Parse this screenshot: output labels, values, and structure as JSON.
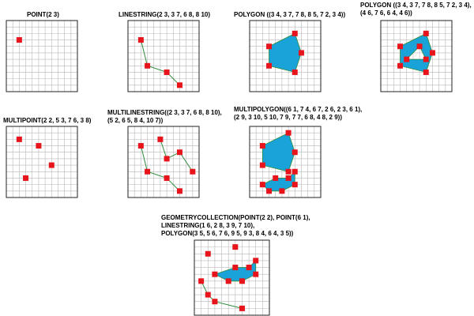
{
  "colors": {
    "point": "#e8141c",
    "fill": "#1aa3d9",
    "line": "#2e8b3a",
    "grid": "#b8b8b8",
    "frame": "#222222"
  },
  "panels": [
    {
      "id": "point",
      "caption": [
        "POINT(2 3)"
      ],
      "points": [
        [
          2,
          3
        ]
      ],
      "lines": [],
      "polygons": []
    },
    {
      "id": "linestring",
      "caption": [
        "LINESTRING(2 3, 3 7, 6 8, 8 10)"
      ],
      "points": [
        [
          2,
          3
        ],
        [
          3,
          7
        ],
        [
          6,
          8
        ],
        [
          8,
          10
        ]
      ],
      "lines": [
        [
          [
            2,
            3
          ],
          [
            3,
            7
          ],
          [
            6,
            8
          ],
          [
            8,
            10
          ]
        ]
      ],
      "polygons": []
    },
    {
      "id": "polygon",
      "caption": [
        "POLYGON ((3 4, 3 7, 7 8, 8 5, 7 2, 3 4))"
      ],
      "points": [
        [
          3,
          4
        ],
        [
          3,
          7
        ],
        [
          7,
          8
        ],
        [
          8,
          5
        ],
        [
          7,
          2
        ]
      ],
      "lines": [],
      "polygons": [
        [
          [
            [
              3,
              4
            ],
            [
              3,
              7
            ],
            [
              7,
              8
            ],
            [
              8,
              5
            ],
            [
              7,
              2
            ]
          ]
        ]
      ]
    },
    {
      "id": "polygon-hole",
      "caption": [
        "POLYGON ((3 4, 3 7, 7 8, 8 5, 7 2, 3 4),",
        "(4 6, 7 6, 6 4, 4 6))"
      ],
      "points": [
        [
          3,
          4
        ],
        [
          3,
          7
        ],
        [
          7,
          8
        ],
        [
          8,
          5
        ],
        [
          7,
          2
        ],
        [
          4,
          6
        ],
        [
          7,
          6
        ],
        [
          6,
          4
        ]
      ],
      "lines": [],
      "polygons": [
        [
          [
            [
              3,
              4
            ],
            [
              3,
              7
            ],
            [
              7,
              8
            ],
            [
              8,
              5
            ],
            [
              7,
              2
            ]
          ],
          [
            [
              4,
              6
            ],
            [
              7,
              6
            ],
            [
              6,
              4
            ]
          ]
        ]
      ]
    },
    {
      "id": "multipoint",
      "caption": [
        "MULTIPOINT(2 2, 5 3, 7 6, 3 8)"
      ],
      "points": [
        [
          2,
          2
        ],
        [
          5,
          3
        ],
        [
          7,
          6
        ],
        [
          3,
          8
        ]
      ],
      "lines": [],
      "polygons": []
    },
    {
      "id": "multilinestring",
      "caption": [
        "MULTILINESTRING((2 3, 3 7, 6 8, 8 10),",
        "(5 2, 6 5, 8 4, 10 7))"
      ],
      "points": [
        [
          2,
          3
        ],
        [
          3,
          7
        ],
        [
          6,
          8
        ],
        [
          8,
          10
        ],
        [
          5,
          2
        ],
        [
          6,
          5
        ],
        [
          8,
          4
        ],
        [
          10,
          7
        ]
      ],
      "lines": [
        [
          [
            2,
            3
          ],
          [
            3,
            7
          ],
          [
            6,
            8
          ],
          [
            8,
            10
          ]
        ],
        [
          [
            5,
            2
          ],
          [
            6,
            5
          ],
          [
            8,
            4
          ],
          [
            10,
            7
          ]
        ]
      ],
      "polygons": []
    },
    {
      "id": "multipolygon",
      "caption": [
        "MULTIPOLYGON((6 1, 7 4, 6 7, 2 6, 2 3, 6 1),",
        "(2 9, 3 10, 5 10, 7 9, 7 7, 6 8, 4 8, 2 9))"
      ],
      "points": [
        [
          6,
          1
        ],
        [
          7,
          4
        ],
        [
          6,
          7
        ],
        [
          2,
          6
        ],
        [
          2,
          3
        ],
        [
          2,
          9
        ],
        [
          3,
          10
        ],
        [
          5,
          10
        ],
        [
          7,
          9
        ],
        [
          7,
          7
        ],
        [
          6,
          8
        ],
        [
          4,
          8
        ]
      ],
      "lines": [],
      "polygons": [
        [
          [
            [
              6,
              1
            ],
            [
              7,
              4
            ],
            [
              6,
              7
            ],
            [
              2,
              6
            ],
            [
              2,
              3
            ]
          ]
        ],
        [
          [
            [
              2,
              9
            ],
            [
              3,
              10
            ],
            [
              5,
              10
            ],
            [
              7,
              9
            ],
            [
              7,
              7
            ],
            [
              6,
              8
            ],
            [
              4,
              8
            ]
          ]
        ]
      ]
    },
    {
      "id": "geometrycollection",
      "caption": [
        "GEOMETRYCOLLECTION(POINT(2 2), POINT(6 1),",
        "LINESTRING(1 6, 2 8, 3 9, 7 10),",
        "POLYGON(3 5, 5 6, 7 6, 9 5, 9 3, 8 4, 6 4, 3 5))"
      ],
      "points": [
        [
          2,
          2
        ],
        [
          6,
          1
        ],
        [
          1,
          6
        ],
        [
          2,
          8
        ],
        [
          3,
          9
        ],
        [
          7,
          10
        ],
        [
          3,
          5
        ],
        [
          5,
          6
        ],
        [
          7,
          6
        ],
        [
          9,
          5
        ],
        [
          9,
          3
        ],
        [
          8,
          4
        ],
        [
          6,
          4
        ]
      ],
      "lines": [
        [
          [
            1,
            6
          ],
          [
            2,
            8
          ],
          [
            3,
            9
          ],
          [
            7,
            10
          ]
        ]
      ],
      "polygons": [
        [
          [
            [
              3,
              5
            ],
            [
              5,
              6
            ],
            [
              7,
              6
            ],
            [
              9,
              5
            ],
            [
              9,
              3
            ],
            [
              8,
              4
            ],
            [
              6,
              4
            ]
          ]
        ]
      ]
    }
  ]
}
